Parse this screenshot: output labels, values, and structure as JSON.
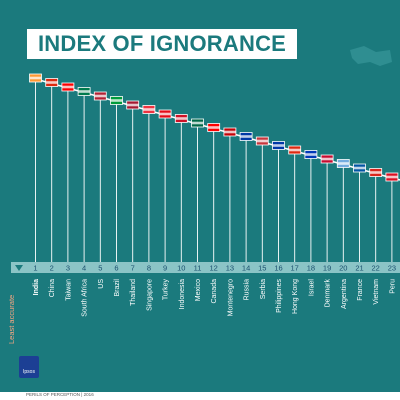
{
  "title": "INDEX OF IGNORANCE",
  "axis_label": "Least accurate",
  "logo_text": "Ipsos",
  "footer": "PERILS OF PERCEPTION | 2016",
  "colors": {
    "background": "#1b7a7d",
    "rank_band": "#8bc4c6",
    "accent": "#f4a582",
    "line": "#ffffff"
  },
  "chart_data": {
    "type": "line",
    "title": "INDEX OF IGNORANCE",
    "x": [
      1,
      2,
      3,
      4,
      5,
      6,
      7,
      8,
      9,
      10,
      11,
      12,
      13,
      14,
      15,
      16,
      17,
      18,
      19,
      20,
      21,
      22,
      23
    ],
    "categories": [
      "India",
      "China",
      "Taiwan",
      "South Africa",
      "US",
      "Brazil",
      "Thailand",
      "Singapore",
      "Turkey",
      "Indonesia",
      "Mexico",
      "Canada",
      "Montenegro",
      "Russia",
      "Serbia",
      "Philippines",
      "Hong Kong",
      "Israel",
      "Denmark",
      "Argentina",
      "France",
      "Vietnam",
      "Peru"
    ],
    "highlight": "India",
    "series": [
      {
        "values": [
          1,
          2,
          3,
          4,
          5,
          6,
          7,
          8,
          9,
          10,
          11,
          12,
          13,
          14,
          15,
          16,
          17,
          18,
          19,
          20,
          21,
          22,
          23
        ]
      }
    ]
  }
}
